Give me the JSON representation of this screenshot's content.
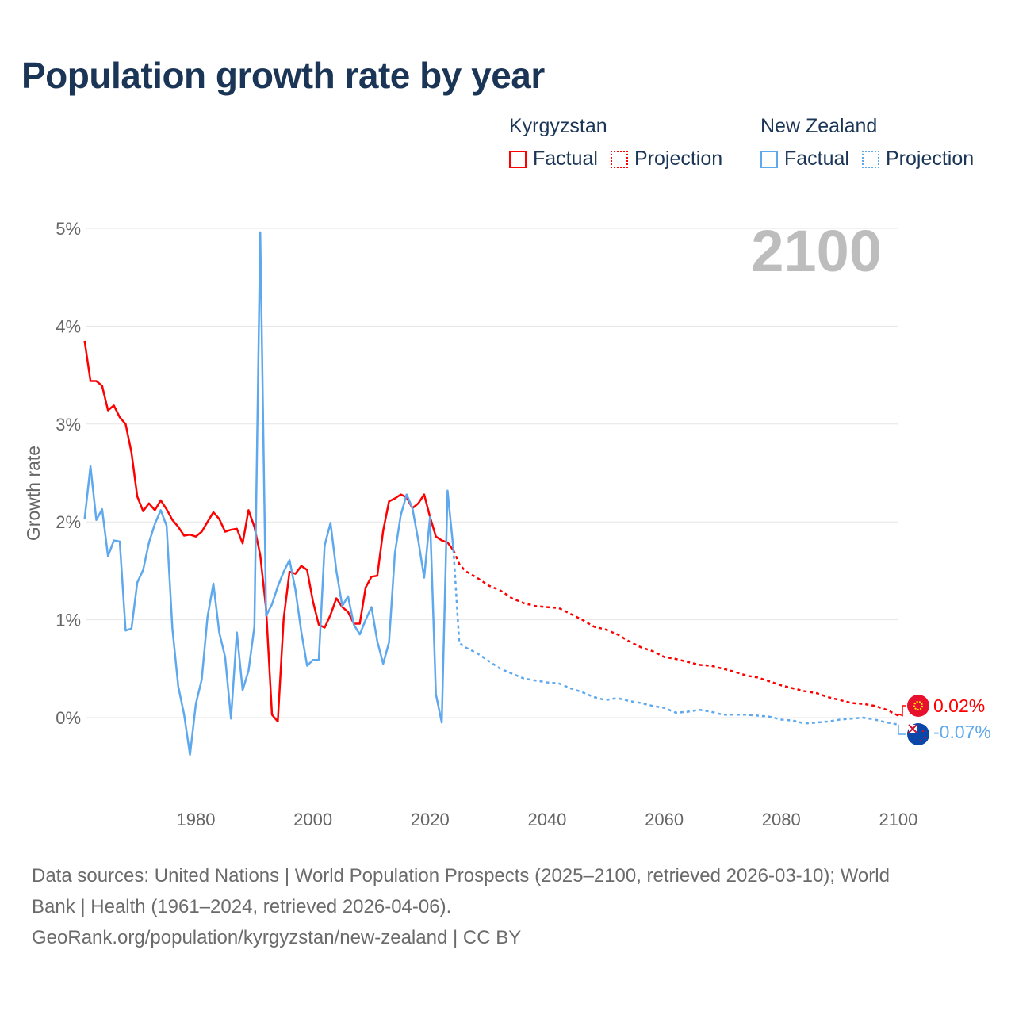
{
  "title": "Population growth rate by year",
  "legend": {
    "groups": [
      {
        "name": "Kyrgyzstan",
        "color": "#ff0000",
        "factual": "Factual",
        "projection": "Projection"
      },
      {
        "name": "New Zealand",
        "color": "#5ea8ee",
        "factual": "Factual",
        "projection": "Projection"
      }
    ]
  },
  "year_overlay": "2100",
  "footer": {
    "line1": "Data sources: United Nations | World Population Prospects (2025–2100, retrieved 2026-03-10); World",
    "line2": "Bank | Health (1961–2024, retrieved 2026-04-06).",
    "line3": "GeoRank.org/population/kyrgyzstan/new-zealand | CC BY"
  },
  "chart_data": {
    "type": "line",
    "title": "Population growth rate by year",
    "xlabel": "",
    "ylabel": "Growth rate",
    "xlim": [
      1961,
      2100
    ],
    "ylim": [
      -0.8,
      5.2
    ],
    "x_ticks": [
      1980,
      2000,
      2020,
      2040,
      2060,
      2080,
      2100
    ],
    "x_tick_labels": [
      "1980",
      "2000",
      "2020",
      "2040",
      "2060",
      "2080",
      "2100"
    ],
    "y_ticks": [
      0,
      1,
      2,
      3,
      4,
      5
    ],
    "y_tick_labels": [
      "0%",
      "1%",
      "2%",
      "3%",
      "4%",
      "5%"
    ],
    "grid": true,
    "legend_position": "top-right",
    "series": [
      {
        "name": "Kyrgyzstan",
        "color": "#ff0000",
        "end_label": "0.02%",
        "factual": {
          "x_start": 1961,
          "values": [
            3.85,
            3.44,
            3.44,
            3.39,
            3.14,
            3.19,
            3.07,
            3.0,
            2.71,
            2.26,
            2.11,
            2.19,
            2.12,
            2.22,
            2.13,
            2.02,
            1.95,
            1.86,
            1.87,
            1.85,
            1.9,
            2.0,
            2.1,
            2.03,
            1.9,
            1.92,
            1.93,
            1.78,
            2.12,
            1.95,
            1.66,
            1.11,
            0.03,
            -0.04,
            1.01,
            1.49,
            1.47,
            1.55,
            1.51,
            1.19,
            0.95,
            0.92,
            1.05,
            1.22,
            1.13,
            1.08,
            0.96,
            0.96,
            1.33,
            1.44,
            1.45,
            1.91,
            2.21,
            2.24,
            2.28,
            2.25,
            2.14,
            2.19,
            2.28,
            2.05,
            1.85,
            1.81,
            1.79,
            1.71
          ]
        },
        "projection": {
          "x": [
            2024,
            2025,
            2026,
            2028,
            2030,
            2032,
            2034,
            2036,
            2038,
            2040,
            2042,
            2044,
            2046,
            2048,
            2050,
            2052,
            2054,
            2056,
            2058,
            2060,
            2062,
            2064,
            2066,
            2068,
            2070,
            2072,
            2074,
            2076,
            2078,
            2080,
            2082,
            2084,
            2086,
            2088,
            2090,
            2092,
            2094,
            2096,
            2098,
            2100
          ],
          "values": [
            1.71,
            1.57,
            1.5,
            1.43,
            1.35,
            1.3,
            1.22,
            1.17,
            1.14,
            1.13,
            1.12,
            1.06,
            1.0,
            0.93,
            0.9,
            0.85,
            0.78,
            0.72,
            0.68,
            0.62,
            0.6,
            0.57,
            0.54,
            0.53,
            0.5,
            0.47,
            0.43,
            0.41,
            0.37,
            0.33,
            0.3,
            0.27,
            0.25,
            0.21,
            0.18,
            0.15,
            0.14,
            0.12,
            0.08,
            0.02
          ]
        }
      },
      {
        "name": "New Zealand",
        "color": "#5ea8ee",
        "end_label": "-0.07%",
        "factual": {
          "x_start": 1961,
          "values": [
            2.03,
            2.57,
            2.02,
            2.13,
            1.65,
            1.81,
            1.8,
            0.89,
            0.91,
            1.38,
            1.51,
            1.79,
            1.98,
            2.12,
            1.96,
            0.91,
            0.32,
            0.03,
            -0.38,
            0.14,
            0.39,
            1.03,
            1.37,
            0.87,
            0.62,
            -0.01,
            0.87,
            0.28,
            0.48,
            0.93,
            4.96,
            1.04,
            1.16,
            1.34,
            1.49,
            1.61,
            1.31,
            0.88,
            0.53,
            0.59,
            0.59,
            1.76,
            1.99,
            1.5,
            1.14,
            1.24,
            0.95,
            0.85,
            1.0,
            1.13,
            0.78,
            0.55,
            0.77,
            1.68,
            2.07,
            2.28,
            2.14,
            1.81,
            1.43,
            2.05,
            0.24,
            -0.05,
            2.32,
            1.72
          ]
        },
        "projection": {
          "x": [
            2024,
            2025,
            2026,
            2028,
            2030,
            2032,
            2034,
            2036,
            2038,
            2040,
            2042,
            2044,
            2046,
            2048,
            2050,
            2052,
            2054,
            2056,
            2058,
            2060,
            2062,
            2064,
            2066,
            2068,
            2070,
            2072,
            2074,
            2076,
            2078,
            2080,
            2082,
            2084,
            2086,
            2088,
            2090,
            2092,
            2094,
            2096,
            2098,
            2100
          ],
          "values": [
            1.72,
            0.76,
            0.72,
            0.66,
            0.58,
            0.5,
            0.45,
            0.4,
            0.38,
            0.36,
            0.35,
            0.3,
            0.26,
            0.21,
            0.18,
            0.2,
            0.17,
            0.15,
            0.12,
            0.1,
            0.05,
            0.06,
            0.08,
            0.06,
            0.03,
            0.03,
            0.03,
            0.02,
            0.01,
            -0.02,
            -0.03,
            -0.06,
            -0.05,
            -0.04,
            -0.02,
            -0.01,
            0.0,
            -0.02,
            -0.05,
            -0.07
          ]
        }
      }
    ]
  }
}
